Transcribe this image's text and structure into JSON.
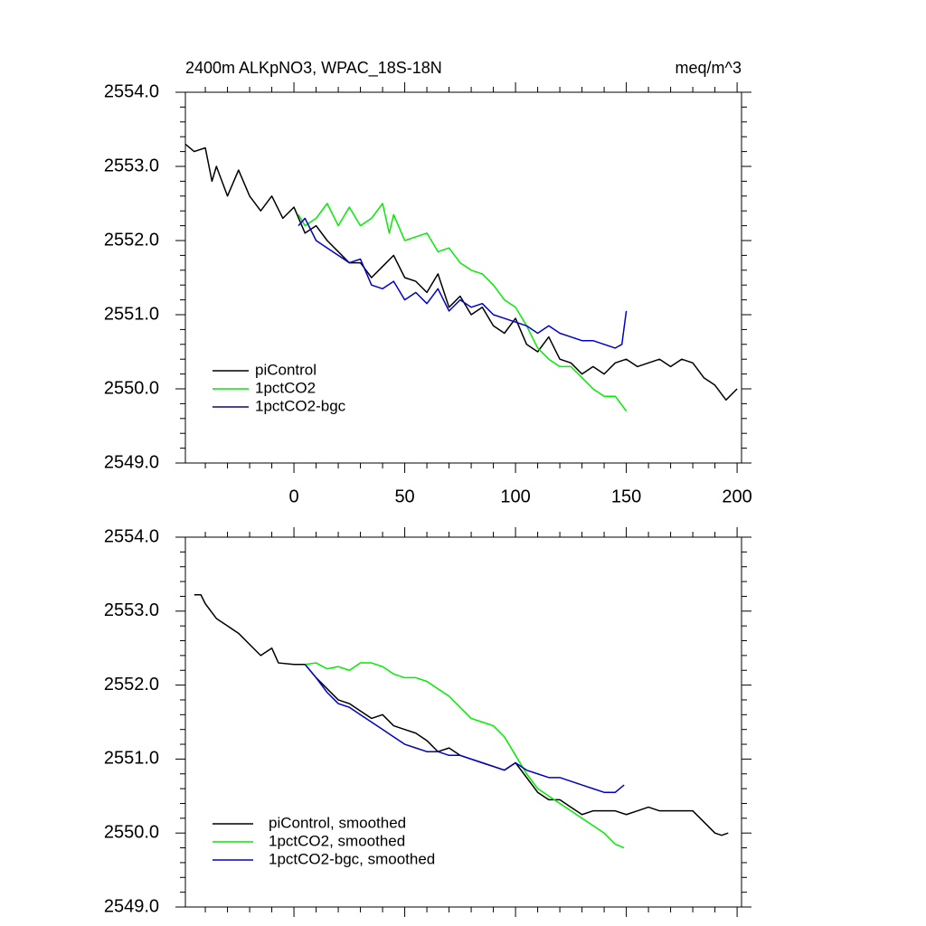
{
  "chart_data": [
    {
      "type": "line",
      "title": "2400m ALKpNO3, WPAC_18S-18N",
      "units": "meq/m^3",
      "xlim": [
        -49,
        202
      ],
      "xticks": [
        0,
        50,
        100,
        150,
        200
      ],
      "ylim": [
        2549,
        2554
      ],
      "yticks": [
        {
          "value": 2549,
          "label": "2549.0"
        },
        {
          "value": 2550,
          "label": "2550.0"
        },
        {
          "value": 2551,
          "label": "2551.0"
        },
        {
          "value": 2552,
          "label": "2552.0"
        },
        {
          "value": 2553,
          "label": "2553.0"
        },
        {
          "value": 2554,
          "label": "2554.0"
        }
      ],
      "legend": "lower left",
      "series": [
        {
          "name": "piControl",
          "color": "#000000",
          "x": [
            -49,
            -45,
            -40,
            -37,
            -35,
            -30,
            -25,
            -20,
            -15,
            -10,
            -5,
            0,
            5,
            10,
            15,
            20,
            25,
            30,
            35,
            40,
            45,
            50,
            55,
            60,
            65,
            70,
            75,
            80,
            85,
            90,
            95,
            100,
            105,
            110,
            115,
            120,
            125,
            130,
            135,
            140,
            145,
            150,
            155,
            160,
            165,
            170,
            175,
            180,
            185,
            190,
            195,
            200
          ],
          "values": [
            2553.3,
            2553.2,
            2553.25,
            2552.8,
            2553.0,
            2552.6,
            2552.95,
            2552.6,
            2552.4,
            2552.6,
            2552.3,
            2552.45,
            2552.1,
            2552.2,
            2552.0,
            2551.85,
            2551.7,
            2551.7,
            2551.5,
            2551.65,
            2551.8,
            2551.5,
            2551.45,
            2551.3,
            2551.55,
            2551.1,
            2551.25,
            2551.0,
            2551.1,
            2550.85,
            2550.75,
            2550.95,
            2550.6,
            2550.5,
            2550.7,
            2550.4,
            2550.35,
            2550.2,
            2550.3,
            2550.2,
            2550.35,
            2550.4,
            2550.3,
            2550.35,
            2550.4,
            2550.3,
            2550.4,
            2550.35,
            2550.15,
            2550.05,
            2549.85,
            2550.0
          ]
        },
        {
          "name": "1pctCO2",
          "color": "#00ee00",
          "x": [
            2,
            5,
            10,
            15,
            20,
            25,
            30,
            35,
            40,
            43,
            45,
            50,
            55,
            60,
            65,
            70,
            75,
            80,
            85,
            90,
            95,
            100,
            105,
            110,
            115,
            120,
            125,
            130,
            135,
            140,
            145,
            150
          ],
          "values": [
            2552.35,
            2552.2,
            2552.3,
            2552.5,
            2552.2,
            2552.45,
            2552.2,
            2552.3,
            2552.5,
            2552.1,
            2552.35,
            2552.0,
            2552.05,
            2552.1,
            2551.85,
            2551.9,
            2551.7,
            2551.6,
            2551.55,
            2551.4,
            2551.2,
            2551.1,
            2550.85,
            2550.55,
            2550.4,
            2550.3,
            2550.3,
            2550.15,
            2550.0,
            2549.9,
            2549.9,
            2549.7
          ]
        },
        {
          "name": "1pctCO2-bgc",
          "color": "#0000cc",
          "x": [
            2,
            5,
            10,
            15,
            20,
            25,
            30,
            35,
            40,
            45,
            50,
            55,
            60,
            65,
            70,
            75,
            80,
            85,
            90,
            95,
            100,
            105,
            110,
            115,
            120,
            125,
            130,
            135,
            140,
            145,
            148,
            150
          ],
          "values": [
            2552.2,
            2552.3,
            2552.0,
            2551.9,
            2551.8,
            2551.7,
            2551.75,
            2551.4,
            2551.35,
            2551.45,
            2551.2,
            2551.3,
            2551.15,
            2551.35,
            2551.05,
            2551.2,
            2551.1,
            2551.15,
            2551.0,
            2550.95,
            2550.9,
            2550.85,
            2550.75,
            2550.85,
            2550.75,
            2550.7,
            2550.65,
            2550.65,
            2550.6,
            2550.55,
            2550.6,
            2551.05
          ]
        }
      ]
    },
    {
      "type": "line",
      "xlim": [
        -49,
        202
      ],
      "xticks": [
        0,
        50,
        100,
        150,
        200
      ],
      "ylim": [
        2549,
        2554
      ],
      "yticks": [
        {
          "value": 2549,
          "label": "2549.0"
        },
        {
          "value": 2550,
          "label": "2550.0"
        },
        {
          "value": 2551,
          "label": "2551.0"
        },
        {
          "value": 2552,
          "label": "2552.0"
        },
        {
          "value": 2553,
          "label": "2553.0"
        },
        {
          "value": 2554,
          "label": "2554.0"
        }
      ],
      "legend": "lower left",
      "series": [
        {
          "name": "piControl, smoothed",
          "color": "#000000",
          "x": [
            -45,
            -42,
            -40,
            -35,
            -30,
            -25,
            -20,
            -15,
            -10,
            -7,
            0,
            5,
            10,
            15,
            20,
            25,
            30,
            35,
            40,
            45,
            50,
            55,
            60,
            65,
            70,
            75,
            80,
            85,
            90,
            95,
            100,
            105,
            110,
            115,
            120,
            125,
            130,
            135,
            140,
            145,
            150,
            155,
            160,
            165,
            170,
            175,
            180,
            185,
            190,
            193,
            196
          ],
          "values": [
            2553.22,
            2553.22,
            2553.1,
            2552.9,
            2552.8,
            2552.7,
            2552.55,
            2552.4,
            2552.5,
            2552.3,
            2552.28,
            2552.28,
            2552.1,
            2551.95,
            2551.8,
            2551.75,
            2551.65,
            2551.55,
            2551.6,
            2551.45,
            2551.4,
            2551.35,
            2551.25,
            2551.1,
            2551.15,
            2551.05,
            2551.0,
            2550.95,
            2550.9,
            2550.85,
            2550.95,
            2550.75,
            2550.55,
            2550.45,
            2550.45,
            2550.35,
            2550.25,
            2550.3,
            2550.3,
            2550.3,
            2550.25,
            2550.3,
            2550.35,
            2550.3,
            2550.3,
            2550.3,
            2550.3,
            2550.15,
            2550.0,
            2549.97,
            2550.0
          ]
        },
        {
          "name": "1pctCO2, smoothed",
          "color": "#00ee00",
          "x": [
            5,
            10,
            15,
            20,
            25,
            30,
            35,
            40,
            45,
            50,
            55,
            60,
            65,
            70,
            75,
            80,
            85,
            90,
            95,
            100,
            105,
            110,
            115,
            120,
            125,
            130,
            135,
            140,
            145,
            149
          ],
          "values": [
            2552.28,
            2552.3,
            2552.22,
            2552.25,
            2552.2,
            2552.3,
            2552.3,
            2552.25,
            2552.15,
            2552.1,
            2552.1,
            2552.05,
            2551.95,
            2551.85,
            2551.7,
            2551.55,
            2551.5,
            2551.45,
            2551.3,
            2551.05,
            2550.8,
            2550.6,
            2550.5,
            2550.4,
            2550.3,
            2550.2,
            2550.1,
            2550.0,
            2549.85,
            2549.8
          ]
        },
        {
          "name": "1pctCO2-bgc, smoothed",
          "color": "#0000cc",
          "x": [
            5,
            10,
            15,
            20,
            25,
            30,
            35,
            40,
            45,
            50,
            55,
            60,
            65,
            70,
            75,
            80,
            85,
            90,
            95,
            100,
            105,
            110,
            115,
            120,
            125,
            130,
            135,
            140,
            145,
            149
          ],
          "values": [
            2552.28,
            2552.1,
            2551.9,
            2551.75,
            2551.7,
            2551.6,
            2551.5,
            2551.4,
            2551.3,
            2551.2,
            2551.15,
            2551.1,
            2551.1,
            2551.05,
            2551.05,
            2551.0,
            2550.95,
            2550.9,
            2550.85,
            2550.95,
            2550.85,
            2550.8,
            2550.75,
            2550.75,
            2550.7,
            2550.65,
            2550.6,
            2550.55,
            2550.55,
            2550.65
          ]
        }
      ]
    }
  ]
}
